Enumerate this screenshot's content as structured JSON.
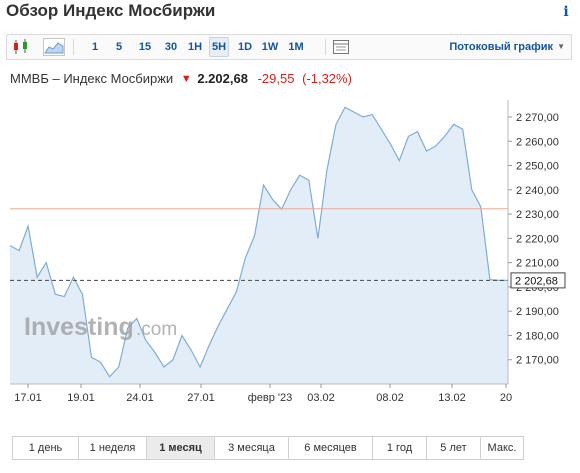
{
  "header": {
    "title": "Обзор Индекс Мосбиржи",
    "info_icon": "info-icon"
  },
  "toolbar": {
    "timeframes": [
      "1",
      "5",
      "15",
      "30",
      "1H",
      "5H",
      "1D",
      "1W",
      "1M"
    ],
    "active_timeframe": "5H",
    "stream_label": "Потоковый график",
    "icons": [
      "candlestick-icon",
      "area-chart-icon",
      "table-icon",
      "chevron-down-icon"
    ]
  },
  "quote": {
    "name": "ММВБ – Индекс Мосбиржи",
    "arrow": "🡇",
    "price": "2.202,68",
    "change": "-29,55",
    "change_pct": "(-1,32%)"
  },
  "colors": {
    "accent": "#1256a0",
    "negative": "#d8201b",
    "area_fill": "#e3edf7",
    "line": "#7faed4",
    "ref_line": "#f0a898"
  },
  "watermark": {
    "brand": "Investing",
    "suffix": ".com"
  },
  "chart_data": {
    "type": "area",
    "x_tick_labels": [
      "17.01",
      "19.01",
      "24.01",
      "27.01",
      "февр '23",
      "03.02",
      "08.02",
      "13.02",
      "20"
    ],
    "y_tick_labels": [
      "2 270,00",
      "2 260,00",
      "2 250,00",
      "2 240,00",
      "2 230,00",
      "2 220,00",
      "2 210,00",
      "2 200,00",
      "2 190,00",
      "2 180,00",
      "2 170,00"
    ],
    "ylim": [
      2160,
      2277
    ],
    "last_value_label": "2 202,68",
    "last_value": 2202.68,
    "reference_value": 2232.2,
    "values": [
      2217,
      2215,
      2225,
      2204,
      2210,
      2197,
      2196,
      2204,
      2197,
      2171,
      2169,
      2163,
      2167,
      2183,
      2187,
      2178,
      2173,
      2167,
      2170,
      2180,
      2174,
      2167,
      2176,
      2184,
      2191,
      2198,
      2212,
      2221,
      2242,
      2236,
      2232,
      2240,
      2246,
      2244,
      2220,
      2248,
      2267,
      2274,
      2272,
      2270,
      2271,
      2265,
      2259,
      2252,
      2262,
      2264,
      2256,
      2258,
      2262,
      2267,
      2265,
      2240,
      2233,
      2203,
      2202.68,
      2202.68
    ]
  },
  "period_bar": {
    "items": [
      "1 день",
      "1 неделя",
      "1 месяц",
      "3 месяца",
      "6 месяцев",
      "1 год",
      "5 лет",
      "Макс."
    ],
    "active": "1 месяц"
  }
}
